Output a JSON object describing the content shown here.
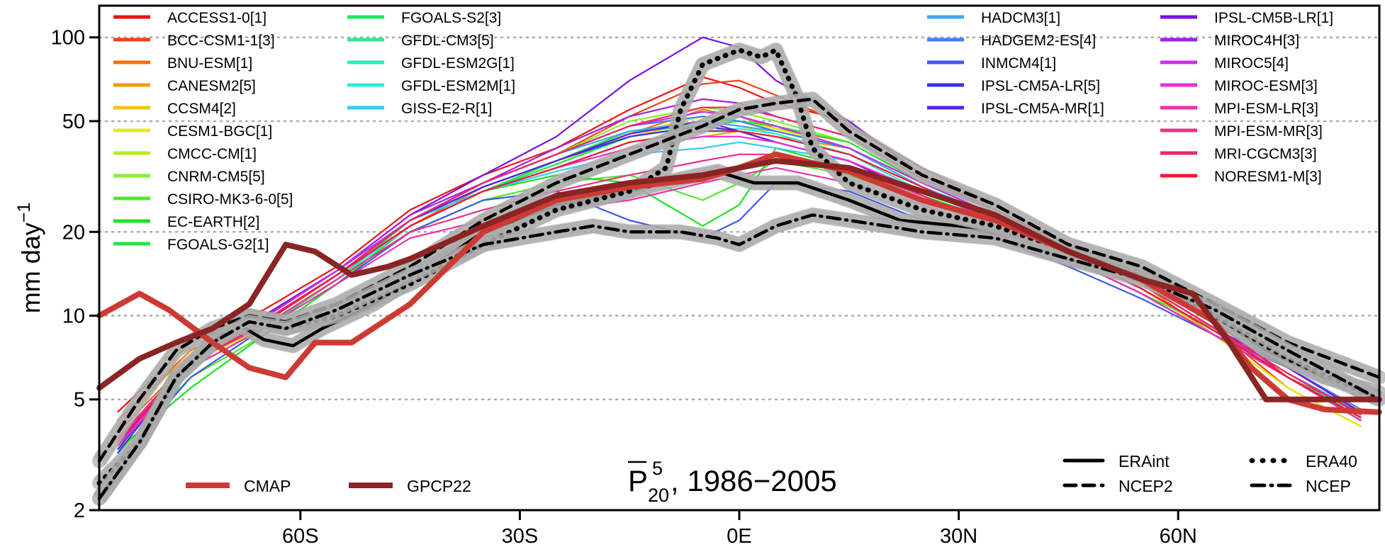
{
  "chart_data": {
    "type": "line",
    "title_symbol": "P",
    "title_sub": "20",
    "title_sup": "5",
    "title_rest": ", 1986−2005",
    "ylabel": "mm day",
    "ylabel_sup": "−1",
    "yscale": "log",
    "xlim": [
      -87.5,
      87.5
    ],
    "ylim": [
      2,
      130
    ],
    "x_ticks": [
      -60,
      -30,
      0,
      30,
      60
    ],
    "x_tick_labels": [
      "60S",
      "30S",
      "0E",
      "30N",
      "60N"
    ],
    "y_ticks": [
      2,
      5,
      10,
      20,
      50,
      100
    ],
    "y_tick_labels": [
      "2",
      "5",
      "10",
      "20",
      "50",
      "100"
    ],
    "grid": "horizontal dotted at y ticks",
    "models": [
      {
        "name": "ACCESS1-0[1]",
        "color": "#f21010",
        "y": [
          4.5,
          8,
          10.5,
          15,
          24,
          32,
          40,
          55,
          72,
          66,
          58,
          50,
          32,
          24,
          18,
          14,
          9.5,
          6,
          4.5
        ]
      },
      {
        "name": "BCC-CSM1-1[3]",
        "color": "#f4401a",
        "y": [
          4.2,
          7.5,
          10,
          14.5,
          22,
          30,
          38,
          52,
          68,
          70,
          62,
          48,
          34,
          25,
          18,
          13,
          9,
          5.5,
          4
        ]
      },
      {
        "name": "BNU-ESM[1]",
        "color": "#f07010",
        "y": [
          3.8,
          7,
          9.5,
          14,
          21,
          29,
          36,
          45,
          55,
          52,
          47,
          42,
          30,
          23,
          17,
          13,
          8.5,
          5.5,
          4
        ]
      },
      {
        "name": "CANESM2[5]",
        "color": "#f59a10",
        "y": [
          4,
          7.5,
          10,
          14.5,
          22,
          28,
          34,
          40,
          44,
          46,
          44,
          40,
          30,
          23,
          17,
          13,
          9,
          6,
          4.2
        ]
      },
      {
        "name": "CCSM4[2]",
        "color": "#eec410",
        "y": [
          3.5,
          7,
          9,
          13.5,
          21,
          28,
          35,
          44,
          50,
          48,
          46,
          40,
          29,
          22,
          17,
          12.5,
          8.5,
          5.5,
          4
        ]
      },
      {
        "name": "CESM1-BGC[1]",
        "color": "#e0ee10",
        "y": [
          3.4,
          6.8,
          9,
          13.5,
          21,
          28,
          35,
          45,
          52,
          50,
          47,
          40,
          29,
          22,
          17,
          12.5,
          8.5,
          5.5,
          4
        ]
      },
      {
        "name": "CMCC-CM[1]",
        "color": "#b4ee20",
        "y": [
          3.6,
          7,
          9.5,
          14,
          22,
          29,
          36,
          46,
          50,
          48,
          45,
          38,
          28,
          22,
          17,
          13,
          9,
          6,
          4.4
        ]
      },
      {
        "name": "CNRM-CM5[5]",
        "color": "#88ee30",
        "y": [
          3.5,
          7,
          9.5,
          14,
          22,
          30,
          38,
          50,
          56,
          54,
          50,
          42,
          30,
          23,
          17,
          13,
          9,
          6,
          4.3
        ]
      },
      {
        "name": "CSIRO-MK3-6-0[5]",
        "color": "#50e830",
        "y": [
          3.2,
          6,
          8.5,
          13,
          20,
          26,
          30,
          32,
          26,
          30,
          36,
          32,
          26,
          21,
          16,
          12,
          9,
          6.5,
          4.5
        ]
      },
      {
        "name": "EC-EARTH[2]",
        "color": "#20e020",
        "y": [
          3.3,
          5.5,
          8.5,
          13,
          21,
          28,
          32,
          30,
          21,
          25,
          40,
          34,
          27,
          22,
          16.5,
          13,
          9.5,
          7.5,
          5
        ]
      },
      {
        "name": "FGOALS-G2[1]",
        "color": "#20e840",
        "y": [
          3.6,
          6.5,
          9,
          13.5,
          21,
          28,
          36,
          46,
          48,
          50,
          48,
          42,
          30,
          23,
          17,
          13,
          9,
          6,
          4.3
        ]
      },
      {
        "name": "FGOALS-S2[3]",
        "color": "#20e860",
        "y": [
          3.5,
          6.5,
          9,
          13.5,
          22,
          28,
          35,
          44,
          48,
          52,
          48,
          40,
          29,
          23,
          17,
          13,
          9,
          6,
          4.2
        ]
      },
      {
        "name": "GFDL-CM3[5]",
        "color": "#30e890",
        "y": [
          3.5,
          7,
          9.5,
          14,
          22,
          29,
          36,
          45,
          50,
          50,
          46,
          40,
          29,
          23,
          17,
          13,
          9,
          6,
          4.4
        ]
      },
      {
        "name": "GFDL-ESM2G[1]",
        "color": "#30e8b8",
        "y": [
          3.4,
          6.8,
          9.2,
          13.5,
          21,
          28,
          34,
          42,
          46,
          46,
          44,
          38,
          28,
          22,
          16.5,
          12.5,
          8.8,
          6,
          4.3
        ]
      },
      {
        "name": "GFDL-ESM2M[1]",
        "color": "#30e8e0",
        "y": [
          3.4,
          6.8,
          9.2,
          13.5,
          21,
          28,
          34,
          42,
          46,
          47,
          45,
          38,
          28,
          22,
          16.5,
          12.5,
          8.8,
          6,
          4.3
        ]
      },
      {
        "name": "GISS-E2-R[1]",
        "color": "#30d0f0",
        "y": [
          3.5,
          7,
          9.5,
          14,
          22,
          28,
          33,
          38,
          40,
          42,
          40,
          36,
          28,
          22,
          16.5,
          12.5,
          8.8,
          6,
          4.3
        ]
      },
      {
        "name": "HADCM3[1]",
        "color": "#40a8f0",
        "y": [
          3.6,
          7,
          9.8,
          14.5,
          22,
          30,
          38,
          46,
          50,
          48,
          46,
          40,
          29,
          23,
          17,
          13,
          9,
          6.2,
          4.5
        ]
      },
      {
        "name": "HADGEM2-ES[4]",
        "color": "#4080f0",
        "y": [
          3.6,
          7,
          9.8,
          14.5,
          22,
          30,
          38,
          48,
          52,
          50,
          46,
          40,
          30,
          24,
          17.5,
          13.5,
          9.5,
          6.5,
          4.6
        ]
      },
      {
        "name": "INMCM4[1]",
        "color": "#4058e8",
        "y": [
          3,
          6,
          9,
          13,
          20,
          26,
          28,
          22,
          19,
          22,
          30,
          28,
          22,
          19,
          15,
          11.5,
          8.5,
          6.5,
          4.5
        ]
      },
      {
        "name": "IPSL-CM5A-LR[5]",
        "color": "#3a30e8",
        "y": [
          3.2,
          7,
          9.5,
          14,
          22,
          29,
          36,
          44,
          48,
          46,
          42,
          36,
          27,
          21,
          16,
          12,
          8.5,
          6,
          4.2
        ]
      },
      {
        "name": "IPSL-CM5A-MR[1]",
        "color": "#5820e8",
        "y": [
          3.3,
          7,
          9.5,
          14,
          22,
          29,
          36,
          45,
          50,
          46,
          42,
          36,
          27,
          21,
          16,
          12,
          8.5,
          6,
          4.2
        ]
      },
      {
        "name": "IPSL-CM5B-LR[1]",
        "color": "#7a10e8",
        "y": [
          3.4,
          7,
          10,
          14.5,
          23,
          32,
          44,
          70,
          100,
          92,
          70,
          50,
          32,
          24,
          17.5,
          13,
          9,
          6.5,
          4.5
        ]
      },
      {
        "name": "MIROC4H[3]",
        "color": "#a020e8",
        "y": [
          3.5,
          7,
          9.8,
          14.5,
          23,
          30,
          40,
          52,
          60,
          58,
          52,
          44,
          31,
          24,
          17.5,
          13,
          9,
          6.2,
          4.4
        ]
      },
      {
        "name": "MIROC5[4]",
        "color": "#c830e8",
        "y": [
          3.5,
          7,
          9.8,
          14.5,
          22,
          30,
          38,
          48,
          54,
          52,
          48,
          40,
          30,
          23,
          17,
          13,
          9,
          6,
          4.3
        ]
      },
      {
        "name": "MIROC-ESM[3]",
        "color": "#e830d8",
        "y": [
          3.4,
          6.8,
          9.5,
          14,
          21,
          28,
          34,
          40,
          44,
          44,
          42,
          36,
          28,
          22,
          16.5,
          12.5,
          8.8,
          6,
          4.3
        ]
      },
      {
        "name": "MPI-ESM-LR[3]",
        "color": "#f030b0",
        "y": [
          3.4,
          6.5,
          9,
          13,
          19,
          22,
          24,
          26,
          30,
          32,
          34,
          30,
          25,
          20,
          16,
          12,
          8.5,
          6,
          4.2
        ]
      },
      {
        "name": "MPI-ESM-MR[3]",
        "color": "#f03088",
        "y": [
          3.5,
          6.8,
          9.2,
          13.5,
          20,
          24,
          28,
          32,
          36,
          38,
          38,
          34,
          27,
          21,
          16.5,
          12.5,
          8.8,
          6,
          4.3
        ]
      },
      {
        "name": "MRI-CGCM3[3]",
        "color": "#f02860",
        "y": [
          3.6,
          7,
          9.6,
          14,
          22,
          30,
          38,
          48,
          56,
          56,
          52,
          44,
          31,
          24,
          17.5,
          13,
          9,
          6.2,
          4.4
        ]
      },
      {
        "name": "NORESM1-M[3]",
        "color": "#f01838",
        "y": [
          3.5,
          6.8,
          9.4,
          14,
          21,
          28,
          34,
          42,
          46,
          46,
          44,
          38,
          29,
          22,
          17,
          12.5,
          8.8,
          6,
          4.3
        ]
      }
    ],
    "model_x": [
      -85,
      -75,
      -65,
      -55,
      -45,
      -35,
      -25,
      -15,
      -5,
      0,
      5,
      15,
      25,
      35,
      45,
      55,
      65,
      75,
      85
    ],
    "observations": [
      {
        "name": "CMAP",
        "color": "#cd3a34",
        "width": 8,
        "x": [
          -87.5,
          -82,
          -78,
          -72,
          -67,
          -62,
          -58,
          -53,
          -45,
          -35,
          -25,
          -15,
          -5,
          0,
          5,
          15,
          25,
          35,
          45,
          55,
          65,
          70,
          75,
          80,
          87.5
        ],
        "y": [
          10,
          12,
          10.5,
          8,
          6.5,
          6,
          8,
          8,
          11,
          20,
          26,
          29,
          31,
          34,
          38,
          33,
          26,
          22,
          17,
          13.5,
          9.5,
          6.5,
          5,
          4.6,
          4.5
        ]
      },
      {
        "name": "GPCP22",
        "color": "#8b2424",
        "width": 8,
        "x": [
          -87.5,
          -82,
          -77,
          -72,
          -67,
          -62,
          -58,
          -53,
          -48,
          -45,
          -35,
          -25,
          -15,
          -5,
          0,
          5,
          15,
          25,
          35,
          45,
          55,
          62,
          67,
          72,
          77,
          82,
          87.5
        ],
        "y": [
          5.5,
          7,
          8,
          9,
          11,
          18,
          17,
          14,
          15,
          16,
          21,
          27,
          30,
          32,
          34,
          36,
          34,
          28,
          23,
          17,
          13.5,
          12,
          8,
          5,
          5,
          5,
          5
        ]
      }
    ],
    "reanalyses": [
      {
        "name": "ERAint",
        "style": "solid",
        "x": [
          -87.5,
          -82,
          -77,
          -73,
          -69,
          -65,
          -61,
          -57,
          -50,
          -42,
          -35,
          -25,
          -15,
          -8,
          -3,
          2,
          8,
          15,
          22,
          30,
          38,
          45,
          55,
          65,
          72,
          80,
          87.5
        ],
        "y": [
          2.2,
          3.5,
          6,
          7.5,
          9.5,
          8.2,
          7.8,
          9,
          11,
          15,
          20,
          25,
          28,
          31,
          33,
          30,
          30,
          26,
          22,
          21,
          19,
          16,
          14,
          10,
          7.5,
          6,
          5.3
        ]
      },
      {
        "name": "ERA40",
        "style": "dotted",
        "x": [
          -87.5,
          -82,
          -77,
          -72,
          -67,
          -62,
          -55,
          -45,
          -35,
          -25,
          -15,
          -10,
          -8,
          -5,
          0,
          3,
          5,
          8,
          10,
          15,
          25,
          35,
          45,
          55,
          65,
          75,
          87.5
        ],
        "y": [
          2.5,
          3.5,
          6,
          8,
          10,
          9,
          10,
          13,
          18,
          24,
          28,
          34,
          55,
          80,
          90,
          85,
          90,
          60,
          40,
          30,
          24,
          21,
          17,
          14,
          10,
          7,
          5
        ]
      },
      {
        "name": "NCEP2",
        "style": "dashed",
        "x": [
          -87.5,
          -82,
          -77,
          -72,
          -67,
          -62,
          -55,
          -45,
          -35,
          -25,
          -15,
          -5,
          0,
          5,
          10,
          15,
          25,
          35,
          45,
          55,
          65,
          75,
          87.5
        ],
        "y": [
          3,
          5,
          7.5,
          9,
          10,
          9.5,
          11,
          15,
          22,
          30,
          38,
          48,
          55,
          58,
          60,
          46,
          32,
          25,
          18,
          15,
          11,
          8,
          6
        ]
      },
      {
        "name": "NCEP",
        "style": "dashdot",
        "x": [
          -87.5,
          -82,
          -77,
          -72,
          -67,
          -62,
          -55,
          -45,
          -35,
          -25,
          -20,
          -15,
          -8,
          -3,
          0,
          5,
          10,
          15,
          20,
          25,
          30,
          35,
          45,
          55,
          65,
          75,
          87.5
        ],
        "y": [
          2.2,
          3.5,
          6,
          8,
          9.5,
          9,
          10.5,
          14,
          18,
          20,
          21,
          20,
          20,
          19,
          18,
          21,
          23,
          22,
          21,
          20,
          19.5,
          19,
          16,
          13.5,
          10.5,
          7.5,
          5
        ]
      }
    ]
  }
}
